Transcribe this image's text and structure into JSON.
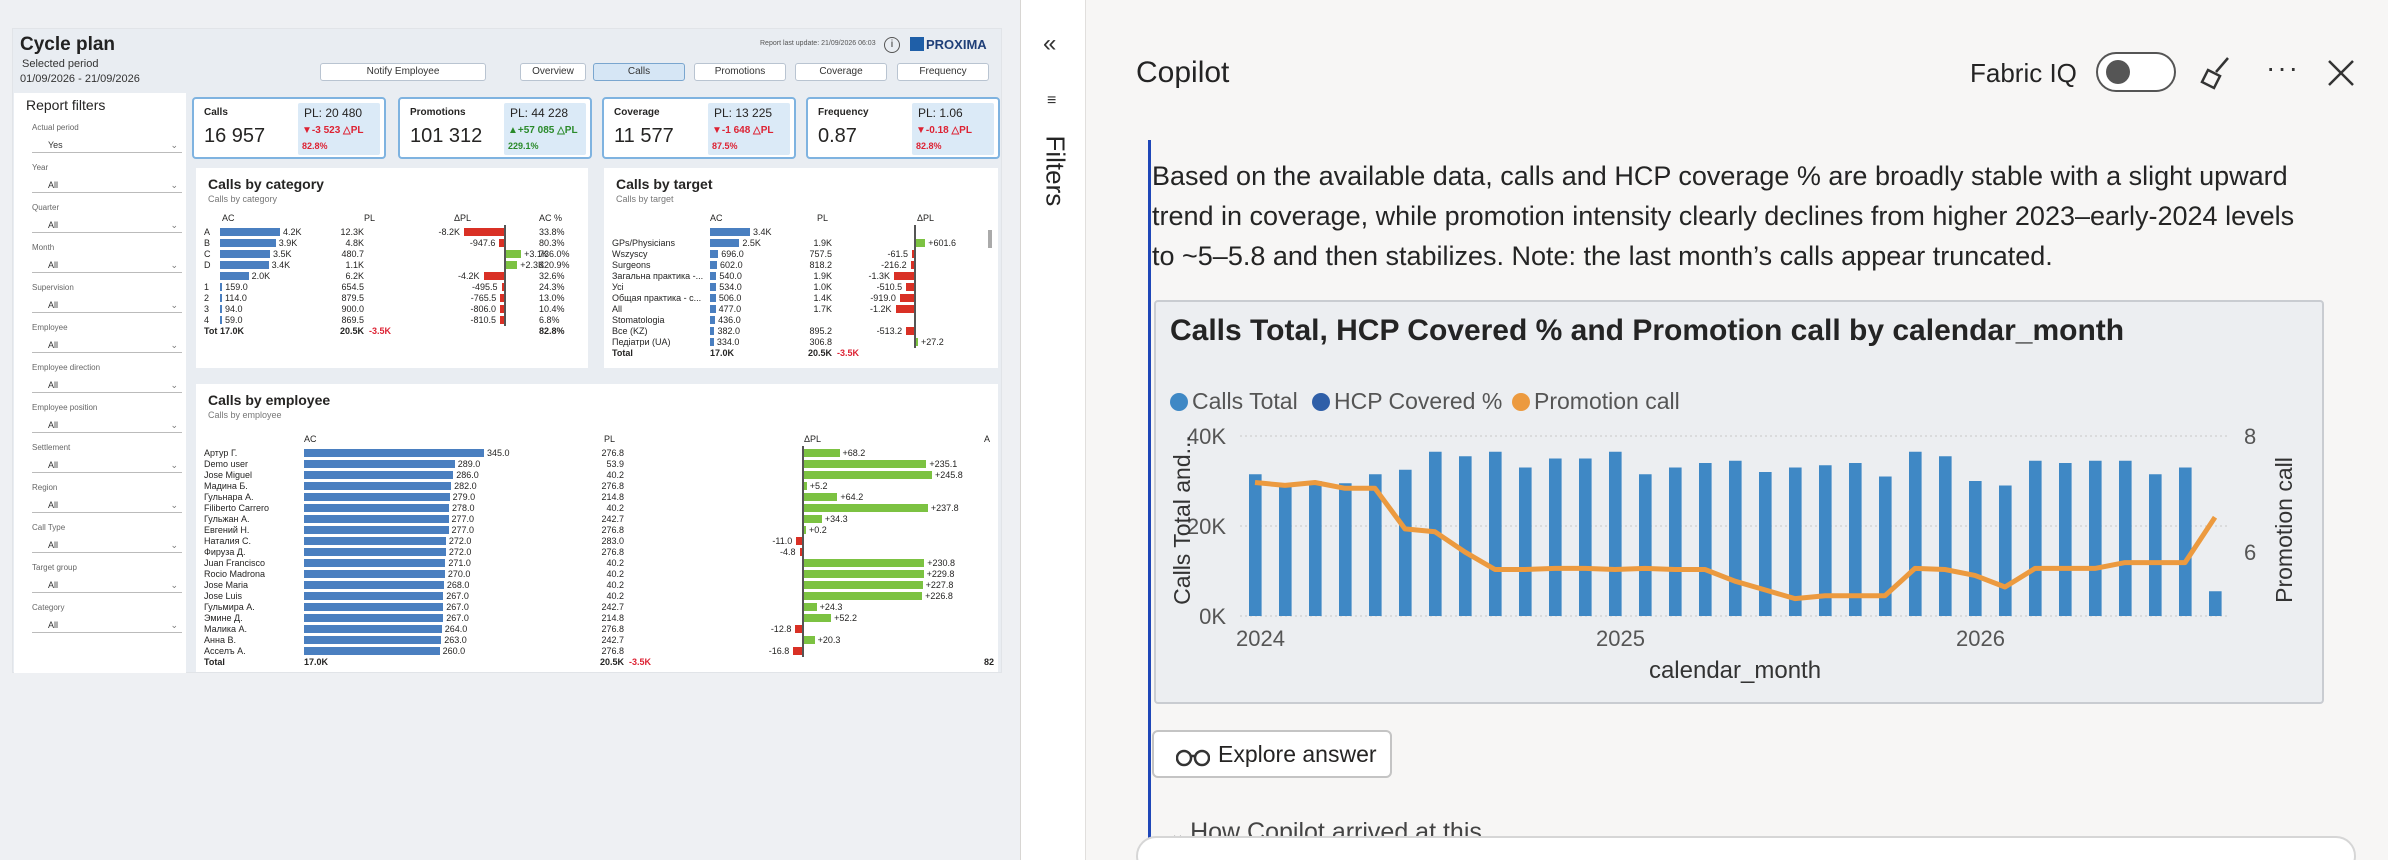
{
  "report": {
    "title": "Cycle plan",
    "selected_period_label": "Selected period",
    "period": "01/09/2026 - 21/09/2026",
    "last_update": "Report last update: 21/09/2026 06:03",
    "brand": "PROXIMA",
    "nav": [
      "Notify Employee",
      "Overview",
      "Calls",
      "Promotions",
      "Coverage",
      "Frequency"
    ],
    "filters_title": "Report filters",
    "filters": [
      {
        "label": "Actual period",
        "value": "Yes"
      },
      {
        "label": "Year",
        "value": "All"
      },
      {
        "label": "Quarter",
        "value": "All"
      },
      {
        "label": "Month",
        "value": "All"
      },
      {
        "label": "Supervision",
        "value": "All"
      },
      {
        "label": "Employee",
        "value": "All"
      },
      {
        "label": "Employee direction",
        "value": "All"
      },
      {
        "label": "Employee position",
        "value": "All"
      },
      {
        "label": "Settlement",
        "value": "All"
      },
      {
        "label": "Region",
        "value": "All"
      },
      {
        "label": "Call Type",
        "value": "All"
      },
      {
        "label": "Target group",
        "value": "All"
      },
      {
        "label": "Category",
        "value": "All"
      }
    ],
    "kpis": [
      {
        "title": "Calls",
        "value": "16 957",
        "pl": "PL: 20 480",
        "delta": "▼-3 523 △PL",
        "pct": "82.8%",
        "dir": "down"
      },
      {
        "title": "Promotions",
        "value": "101 312",
        "pl": "PL: 44 228",
        "delta": "▲+57 085 △PL",
        "pct": "229.1%",
        "dir": "up"
      },
      {
        "title": "Coverage",
        "value": "11 577",
        "pl": "PL: 13 225",
        "delta": "▼-1 648 △PL",
        "pct": "87.5%",
        "dir": "down"
      },
      {
        "title": "Frequency",
        "value": "0.87",
        "pl": "PL: 1.06",
        "delta": "▼-0.18 △PL",
        "pct": "82.8%",
        "dir": "down"
      }
    ],
    "by_category": {
      "title": "Calls by category",
      "subtitle": "Calls by category",
      "headers": [
        "AC",
        "PL",
        "ΔPL",
        "AC %"
      ],
      "rows": [
        {
          "k": "A",
          "ac": "4.2K",
          "acv": 4.2,
          "pl": "12.3K",
          "d": "-8.2K",
          "dv": -8.2,
          "p": "33.8%"
        },
        {
          "k": "B",
          "ac": "3.9K",
          "acv": 3.9,
          "pl": "4.8K",
          "d": "-947.6",
          "dv": -0.95,
          "p": "80.3%"
        },
        {
          "k": "C",
          "ac": "3.5K",
          "acv": 3.5,
          "pl": "480.7",
          "d": "+3.1K",
          "dv": 3.1,
          "p": "736.0%"
        },
        {
          "k": "D",
          "ac": "3.4K",
          "acv": 3.4,
          "pl": "1.1K",
          "d": "+2.3K",
          "dv": 2.3,
          "p": "320.9%"
        },
        {
          "k": "",
          "ac": "2.0K",
          "acv": 2.0,
          "pl": "6.2K",
          "d": "-4.2K",
          "dv": -4.2,
          "p": "32.6%"
        },
        {
          "k": "1",
          "ac": "159.0",
          "acv": 0.16,
          "pl": "654.5",
          "d": "-495.5",
          "dv": -0.5,
          "p": "24.3%"
        },
        {
          "k": "2",
          "ac": "114.0",
          "acv": 0.11,
          "pl": "879.5",
          "d": "-765.5",
          "dv": -0.77,
          "p": "13.0%"
        },
        {
          "k": "3",
          "ac": "94.0",
          "acv": 0.09,
          "pl": "900.0",
          "d": "-806.0",
          "dv": -0.81,
          "p": "10.4%"
        },
        {
          "k": "4",
          "ac": "59.0",
          "acv": 0.06,
          "pl": "869.5",
          "d": "-810.5",
          "dv": -0.81,
          "p": "6.8%"
        }
      ],
      "total": {
        "k": "Tot",
        "ac": "17.0K",
        "pl": "20.5K",
        "d": "-3.5K",
        "p": "82.8%"
      }
    },
    "by_target": {
      "title": "Calls by target",
      "subtitle": "Calls by target",
      "headers": [
        "AC",
        "PL",
        "ΔPL"
      ],
      "rows": [
        {
          "k": "",
          "ac": "3.4K",
          "acv": 3.4,
          "pl": "",
          "d": "",
          "dv": 0
        },
        {
          "k": "GPs/Physicians",
          "ac": "2.5K",
          "acv": 2.5,
          "pl": "1.9K",
          "d": "+601.6",
          "dv": 0.6
        },
        {
          "k": "Wszyscy",
          "ac": "696.0",
          "acv": 0.7,
          "pl": "757.5",
          "d": "-61.5",
          "dv": -0.06
        },
        {
          "k": "Surgeons",
          "ac": "602.0",
          "acv": 0.6,
          "pl": "818.2",
          "d": "-216.2",
          "dv": -0.22
        },
        {
          "k": "Загальна практика -...",
          "ac": "540.0",
          "acv": 0.54,
          "pl": "1.9K",
          "d": "-1.3K",
          "dv": -1.3
        },
        {
          "k": "Усі",
          "ac": "534.0",
          "acv": 0.53,
          "pl": "1.0K",
          "d": "-510.5",
          "dv": -0.51
        },
        {
          "k": "Общая практика - с...",
          "ac": "506.0",
          "acv": 0.5,
          "pl": "1.4K",
          "d": "-919.0",
          "dv": -0.92
        },
        {
          "k": "All",
          "ac": "477.0",
          "acv": 0.48,
          "pl": "1.7K",
          "d": "-1.2K",
          "dv": -1.2
        },
        {
          "k": "Stomatologia",
          "ac": "436.0",
          "acv": 0.44,
          "pl": "",
          "d": "",
          "dv": 0
        },
        {
          "k": "Все (KZ)",
          "ac": "382.0",
          "acv": 0.38,
          "pl": "895.2",
          "d": "-513.2",
          "dv": -0.51
        },
        {
          "k": "Педіатри (UA)",
          "ac": "334.0",
          "acv": 0.33,
          "pl": "306.8",
          "d": "+27.2",
          "dv": 0.03
        }
      ],
      "total": {
        "k": "Total",
        "ac": "17.0K",
        "pl": "20.5K",
        "d": "-3.5K"
      }
    },
    "by_employee": {
      "title": "Calls by employee",
      "subtitle": "Calls by employee",
      "headers": [
        "AC",
        "PL",
        "ΔPL",
        "A"
      ],
      "rows": [
        {
          "k": "Артур Г.",
          "ac": "345.0",
          "acv": 345,
          "pl": "276.8",
          "d": "+68.2",
          "dv": 68.2
        },
        {
          "k": "Demo user",
          "ac": "289.0",
          "acv": 289,
          "pl": "53.9",
          "d": "+235.1",
          "dv": 235.1
        },
        {
          "k": "Jose Miguel",
          "ac": "286.0",
          "acv": 286,
          "pl": "40.2",
          "d": "+245.8",
          "dv": 245.8
        },
        {
          "k": "Мадина Б.",
          "ac": "282.0",
          "acv": 282,
          "pl": "276.8",
          "d": "+5.2",
          "dv": 5.2
        },
        {
          "k": "Гульнара А.",
          "ac": "279.0",
          "acv": 279,
          "pl": "214.8",
          "d": "+64.2",
          "dv": 64.2
        },
        {
          "k": "Filiberto Carrero",
          "ac": "278.0",
          "acv": 278,
          "pl": "40.2",
          "d": "+237.8",
          "dv": 237.8
        },
        {
          "k": "Гульжан А.",
          "ac": "277.0",
          "acv": 277,
          "pl": "242.7",
          "d": "+34.3",
          "dv": 34.3
        },
        {
          "k": "Евгений Н.",
          "ac": "277.0",
          "acv": 277,
          "pl": "276.8",
          "d": "+0.2",
          "dv": 0.2
        },
        {
          "k": "Наталия С.",
          "ac": "272.0",
          "acv": 272,
          "pl": "283.0",
          "d": "-11.0",
          "dv": -11
        },
        {
          "k": "Фируза Д.",
          "ac": "272.0",
          "acv": 272,
          "pl": "276.8",
          "d": "-4.8",
          "dv": -4.8
        },
        {
          "k": "Juan Francisco",
          "ac": "271.0",
          "acv": 271,
          "pl": "40.2",
          "d": "+230.8",
          "dv": 230.8
        },
        {
          "k": "Rocio Madrona",
          "ac": "270.0",
          "acv": 270,
          "pl": "40.2",
          "d": "+229.8",
          "dv": 229.8
        },
        {
          "k": "Jose Maria",
          "ac": "268.0",
          "acv": 268,
          "pl": "40.2",
          "d": "+227.8",
          "dv": 227.8
        },
        {
          "k": "Jose Luis",
          "ac": "267.0",
          "acv": 267,
          "pl": "40.2",
          "d": "+226.8",
          "dv": 226.8
        },
        {
          "k": "Гульмира А.",
          "ac": "267.0",
          "acv": 267,
          "pl": "242.7",
          "d": "+24.3",
          "dv": 24.3
        },
        {
          "k": "Эмине Д.",
          "ac": "267.0",
          "acv": 267,
          "pl": "214.8",
          "d": "+52.2",
          "dv": 52.2
        },
        {
          "k": "Малика А.",
          "ac": "264.0",
          "acv": 264,
          "pl": "276.8",
          "d": "-12.8",
          "dv": -12.8
        },
        {
          "k": "Анна В.",
          "ac": "263.0",
          "acv": 263,
          "pl": "242.7",
          "d": "+20.3",
          "dv": 20.3
        },
        {
          "k": "Асселъ А.",
          "ac": "260.0",
          "acv": 260,
          "pl": "276.8",
          "d": "-16.8",
          "dv": -16.8
        }
      ],
      "total": {
        "k": "Total",
        "ac": "17.0K",
        "pl": "20.5K",
        "d": "-3.5K",
        "a": "82"
      }
    }
  },
  "filters_pane": {
    "label": "Filters"
  },
  "copilot": {
    "title": "Copilot",
    "fabric_label": "Fabric IQ",
    "message": "Based on the available data, calls and HCP coverage % are broadly stable with a slight upward trend in coverage, while promotion intensity clearly declines from higher 2023–early-2024 levels to ~5–5.8 and then stabilizes. Note: the last month’s calls appear truncated.",
    "explore_label": "Explore answer",
    "how_label": "How Copilot arrived at this"
  },
  "colors": {
    "accent": "#1f47b8",
    "calls": "#3f88c5",
    "hcp": "#2f5fa8",
    "promo": "#ec9a3f"
  },
  "chart_data": {
    "type": "bar",
    "title": "Calls Total, HCP Covered % and Promotion call by calendar_month",
    "xlabel": "calendar_month",
    "ylabel": "Calls Total and...",
    "y2label": "Promotion call",
    "legend": [
      "Calls Total",
      "HCP Covered %",
      "Promotion call"
    ],
    "legend_position": "top-left",
    "x_ticks": [
      "2024",
      "2025",
      "2026"
    ],
    "y_ticks": [
      "0K",
      "20K",
      "40K"
    ],
    "y2_ticks": [
      "6",
      "8"
    ],
    "ylim": [
      0,
      40000
    ],
    "y2lim": [
      4.9,
      8
    ],
    "series": [
      {
        "name": "Calls Total",
        "type": "bar",
        "values": [
          31500,
          29000,
          30000,
          29500,
          31500,
          32500,
          36500,
          35500,
          36500,
          33000,
          35000,
          35000,
          36500,
          31500,
          33000,
          34000,
          34500,
          32000,
          33000,
          33500,
          34000,
          31000,
          36500,
          35500,
          30000,
          29000,
          34500,
          34000,
          34500,
          34500,
          31500,
          33000,
          5500
        ]
      },
      {
        "name": "Promotion call",
        "type": "line",
        "values": [
          7.2,
          7.15,
          7.2,
          7.1,
          7.1,
          6.4,
          6.35,
          6.0,
          5.7,
          5.7,
          5.72,
          5.72,
          5.7,
          5.72,
          5.7,
          5.7,
          5.5,
          5.35,
          5.2,
          5.25,
          5.25,
          5.25,
          5.72,
          5.7,
          5.6,
          5.4,
          5.72,
          5.72,
          5.72,
          5.82,
          5.82,
          5.82,
          6.6
        ]
      }
    ]
  }
}
